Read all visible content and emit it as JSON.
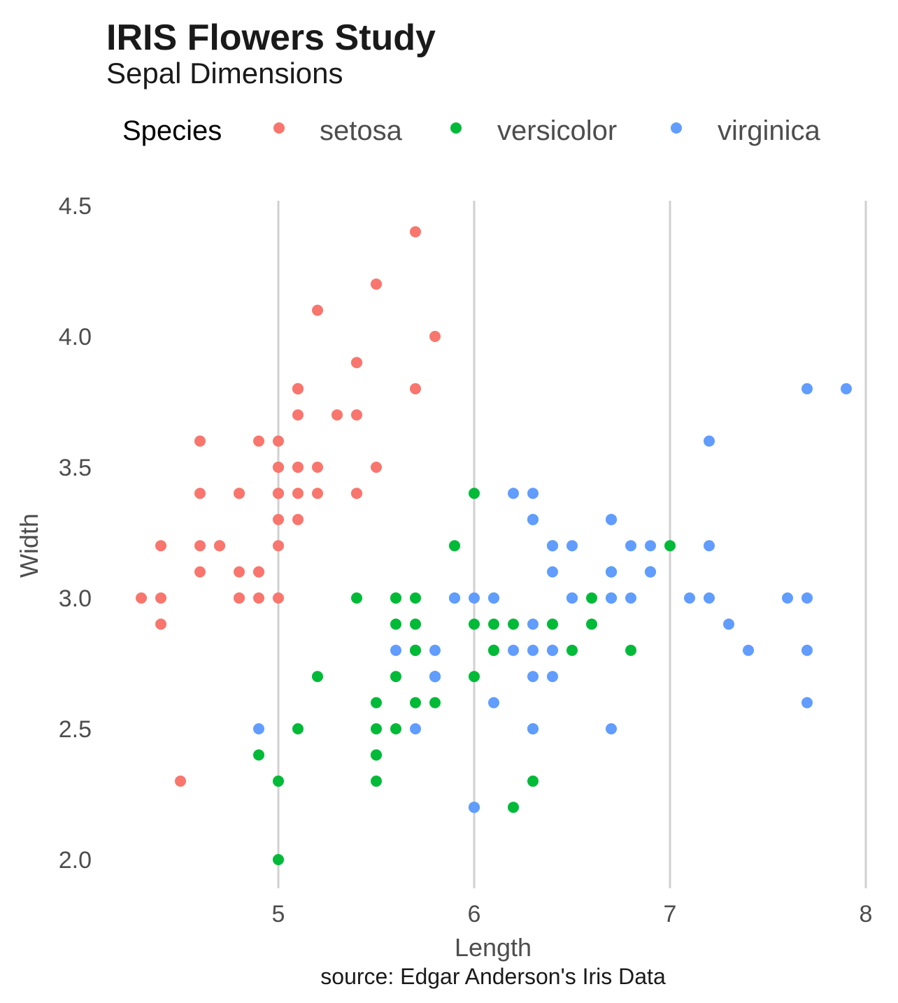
{
  "chart_data": {
    "type": "scatter",
    "title": "IRIS Flowers Study",
    "subtitle": "Sepal Dimensions",
    "xlabel": "Length",
    "ylabel": "Width",
    "caption": "source: Edgar Anderson's Iris Data",
    "xlim": [
      4.2,
      8.0
    ],
    "ylim": [
      1.9,
      4.55
    ],
    "xticks": [
      "5",
      "6",
      "7",
      "8"
    ],
    "yticks": [
      "2.0",
      "2.5",
      "3.0",
      "3.5",
      "4.0",
      "4.5"
    ],
    "grid": "vertical major lines only",
    "legend": {
      "title": "Species",
      "position": "top",
      "entries": [
        "setosa",
        "versicolor",
        "virginica"
      ]
    },
    "series": [
      {
        "name": "setosa",
        "color": "#F8766D",
        "points": [
          [
            5.1,
            3.5
          ],
          [
            4.9,
            3.0
          ],
          [
            4.7,
            3.2
          ],
          [
            4.6,
            3.1
          ],
          [
            5.0,
            3.6
          ],
          [
            5.4,
            3.9
          ],
          [
            4.6,
            3.4
          ],
          [
            5.0,
            3.4
          ],
          [
            4.4,
            2.9
          ],
          [
            4.9,
            3.1
          ],
          [
            5.4,
            3.7
          ],
          [
            4.8,
            3.4
          ],
          [
            4.8,
            3.0
          ],
          [
            4.3,
            3.0
          ],
          [
            5.8,
            4.0
          ],
          [
            5.7,
            4.4
          ],
          [
            5.4,
            3.9
          ],
          [
            5.1,
            3.5
          ],
          [
            5.7,
            3.8
          ],
          [
            5.1,
            3.8
          ],
          [
            5.4,
            3.4
          ],
          [
            5.1,
            3.7
          ],
          [
            4.6,
            3.6
          ],
          [
            5.1,
            3.3
          ],
          [
            4.8,
            3.4
          ],
          [
            5.0,
            3.0
          ],
          [
            5.0,
            3.4
          ],
          [
            5.2,
            3.5
          ],
          [
            5.2,
            3.4
          ],
          [
            4.7,
            3.2
          ],
          [
            4.8,
            3.1
          ],
          [
            5.4,
            3.4
          ],
          [
            5.2,
            4.1
          ],
          [
            5.5,
            4.2
          ],
          [
            4.9,
            3.1
          ],
          [
            5.0,
            3.2
          ],
          [
            5.5,
            3.5
          ],
          [
            4.9,
            3.6
          ],
          [
            4.4,
            3.0
          ],
          [
            5.1,
            3.4
          ],
          [
            5.0,
            3.5
          ],
          [
            4.5,
            2.3
          ],
          [
            4.4,
            3.2
          ],
          [
            5.0,
            3.5
          ],
          [
            5.1,
            3.8
          ],
          [
            4.8,
            3.0
          ],
          [
            5.1,
            3.8
          ],
          [
            4.6,
            3.2
          ],
          [
            5.3,
            3.7
          ],
          [
            5.0,
            3.3
          ]
        ]
      },
      {
        "name": "versicolor",
        "color": "#00BA38",
        "points": [
          [
            7.0,
            3.2
          ],
          [
            6.4,
            3.2
          ],
          [
            6.9,
            3.1
          ],
          [
            5.5,
            2.3
          ],
          [
            6.5,
            2.8
          ],
          [
            5.7,
            2.8
          ],
          [
            6.3,
            3.3
          ],
          [
            4.9,
            2.4
          ],
          [
            6.6,
            2.9
          ],
          [
            5.2,
            2.7
          ],
          [
            5.0,
            2.0
          ],
          [
            5.9,
            3.0
          ],
          [
            6.0,
            2.2
          ],
          [
            6.1,
            2.9
          ],
          [
            5.6,
            2.9
          ],
          [
            6.7,
            3.1
          ],
          [
            5.6,
            3.0
          ],
          [
            5.8,
            2.7
          ],
          [
            6.2,
            2.2
          ],
          [
            5.6,
            2.5
          ],
          [
            5.9,
            3.2
          ],
          [
            6.1,
            2.8
          ],
          [
            6.3,
            2.5
          ],
          [
            6.1,
            2.8
          ],
          [
            6.4,
            2.9
          ],
          [
            6.6,
            3.0
          ],
          [
            6.8,
            2.8
          ],
          [
            6.7,
            3.0
          ],
          [
            6.0,
            2.9
          ],
          [
            5.7,
            2.6
          ],
          [
            5.5,
            2.4
          ],
          [
            5.5,
            2.4
          ],
          [
            5.8,
            2.7
          ],
          [
            6.0,
            2.7
          ],
          [
            5.4,
            3.0
          ],
          [
            6.0,
            3.4
          ],
          [
            6.7,
            3.1
          ],
          [
            6.3,
            2.3
          ],
          [
            5.6,
            3.0
          ],
          [
            5.5,
            2.5
          ],
          [
            5.5,
            2.6
          ],
          [
            6.1,
            3.0
          ],
          [
            5.8,
            2.6
          ],
          [
            5.0,
            2.3
          ],
          [
            5.6,
            2.7
          ],
          [
            5.7,
            3.0
          ],
          [
            5.7,
            2.9
          ],
          [
            6.2,
            2.9
          ],
          [
            5.1,
            2.5
          ],
          [
            5.7,
            2.8
          ]
        ]
      },
      {
        "name": "virginica",
        "color": "#619CFF",
        "points": [
          [
            6.3,
            3.3
          ],
          [
            5.8,
            2.7
          ],
          [
            7.1,
            3.0
          ],
          [
            6.3,
            2.9
          ],
          [
            6.5,
            3.0
          ],
          [
            7.6,
            3.0
          ],
          [
            4.9,
            2.5
          ],
          [
            7.3,
            2.9
          ],
          [
            6.7,
            2.5
          ],
          [
            7.2,
            3.6
          ],
          [
            6.5,
            3.2
          ],
          [
            6.4,
            2.7
          ],
          [
            6.8,
            3.0
          ],
          [
            5.7,
            2.5
          ],
          [
            5.8,
            2.8
          ],
          [
            6.4,
            3.2
          ],
          [
            6.5,
            3.0
          ],
          [
            7.7,
            3.8
          ],
          [
            7.7,
            2.6
          ],
          [
            6.0,
            2.2
          ],
          [
            6.9,
            3.2
          ],
          [
            5.6,
            2.8
          ],
          [
            7.7,
            2.8
          ],
          [
            6.3,
            2.7
          ],
          [
            6.7,
            3.3
          ],
          [
            7.2,
            3.2
          ],
          [
            6.2,
            2.8
          ],
          [
            6.1,
            3.0
          ],
          [
            6.4,
            2.8
          ],
          [
            7.2,
            3.0
          ],
          [
            7.4,
            2.8
          ],
          [
            7.9,
            3.8
          ],
          [
            6.4,
            2.8
          ],
          [
            6.3,
            2.8
          ],
          [
            6.1,
            2.6
          ],
          [
            7.7,
            3.0
          ],
          [
            6.3,
            3.4
          ],
          [
            6.4,
            3.1
          ],
          [
            6.0,
            3.0
          ],
          [
            6.9,
            3.1
          ],
          [
            6.7,
            3.1
          ],
          [
            6.9,
            3.1
          ],
          [
            5.8,
            2.7
          ],
          [
            6.8,
            3.2
          ],
          [
            6.7,
            3.3
          ],
          [
            6.7,
            3.0
          ],
          [
            6.3,
            2.5
          ],
          [
            6.5,
            3.0
          ],
          [
            6.2,
            3.4
          ],
          [
            5.9,
            3.0
          ]
        ]
      }
    ]
  }
}
